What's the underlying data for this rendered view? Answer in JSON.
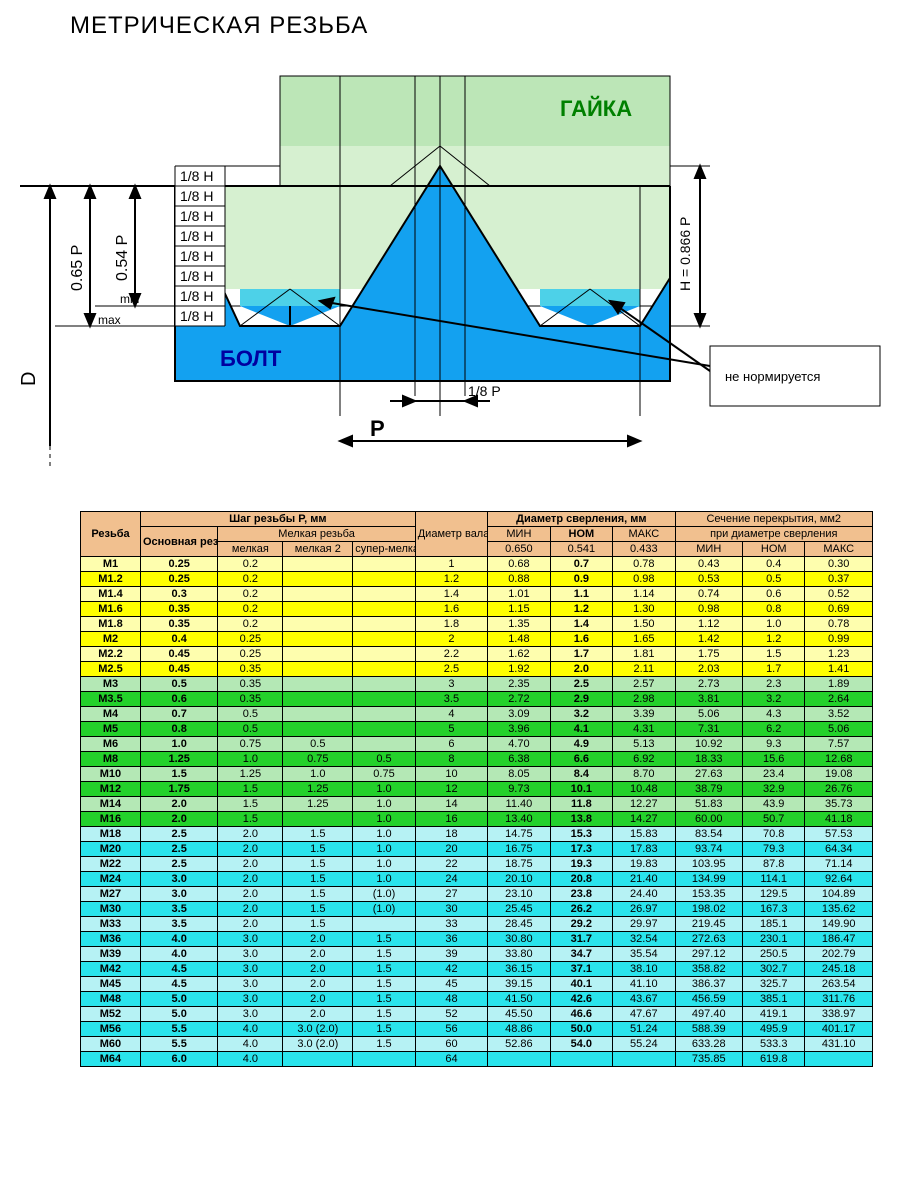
{
  "title": "МЕТРИЧЕСКАЯ РЕЗЬБА",
  "diagram": {
    "nut_label": "ГАЙКА",
    "bolt_label": "БОЛТ",
    "eighth_h": "1/8 H",
    "d_label": "D",
    "p065": "0.65 P",
    "p054": "0.54 P",
    "min": "min",
    "max": "max",
    "h0866": "H = 0.866 P",
    "eighth_p": "1/8 P",
    "p_label": "P",
    "tooltip": "не нормируется",
    "colors": {
      "nut_fill": "#BCE6B7",
      "nut_fill_light": "#D6F0D0",
      "bolt_fill": "#13A1F0",
      "valley_fill": "#4DD1E8",
      "line": "#000000"
    }
  },
  "table": {
    "header_bg": "#F1C08F",
    "colors_hi": {
      "yellow": "#FFFF00",
      "lyellow": "#FEFEAE",
      "green": "#24D12B",
      "lgreen": "#B4E8B5",
      "cyan": "#2AE4EC",
      "lcyan": "#B6F2F4"
    },
    "head": {
      "thread": "Резьба",
      "pitch_group": "Шаг резьбы P, мм",
      "diam": "Диаметр вала, мм",
      "drill_group": "Диаметр сверления, мм",
      "overlap_group": "Сечение перекрытия, мм2",
      "overlap_sub": "при диаметре сверления",
      "main_pitch": "Основная резьба",
      "fine_group": "Мелкая резьба",
      "fine1": "мелкая",
      "fine2": "мелкая 2",
      "fine3": "супер-мелкая",
      "min": "МИН",
      "nom": "НОМ",
      "max": "МАКС",
      "d065": "0.650",
      "d054": "0.541",
      "d043": "0.433"
    },
    "rows": [
      {
        "hi": 1,
        "c": "yellow",
        "n": "M1",
        "p": "0.25",
        "f1": "0.2",
        "f2": "",
        "f3": "",
        "d": "1",
        "dmin": "0.68",
        "dnom": "0.7",
        "dmax": "0.78",
        "smin": "0.43",
        "snom": "0.4",
        "smax": "0.30"
      },
      {
        "hi": 0,
        "c": "yellow",
        "n": "M1.2",
        "p": "0.25",
        "f1": "0.2",
        "f2": "",
        "f3": "",
        "d": "1.2",
        "dmin": "0.88",
        "dnom": "0.9",
        "dmax": "0.98",
        "smin": "0.53",
        "snom": "0.5",
        "smax": "0.37"
      },
      {
        "hi": 1,
        "c": "yellow",
        "n": "M1.4",
        "p": "0.3",
        "f1": "0.2",
        "f2": "",
        "f3": "",
        "d": "1.4",
        "dmin": "1.01",
        "dnom": "1.1",
        "dmax": "1.14",
        "smin": "0.74",
        "snom": "0.6",
        "smax": "0.52"
      },
      {
        "hi": 0,
        "c": "yellow",
        "n": "M1.6",
        "p": "0.35",
        "f1": "0.2",
        "f2": "",
        "f3": "",
        "d": "1.6",
        "dmin": "1.15",
        "dnom": "1.2",
        "dmax": "1.30",
        "smin": "0.98",
        "snom": "0.8",
        "smax": "0.69"
      },
      {
        "hi": 1,
        "c": "yellow",
        "n": "M1.8",
        "p": "0.35",
        "f1": "0.2",
        "f2": "",
        "f3": "",
        "d": "1.8",
        "dmin": "1.35",
        "dnom": "1.4",
        "dmax": "1.50",
        "smin": "1.12",
        "snom": "1.0",
        "smax": "0.78"
      },
      {
        "hi": 0,
        "c": "yellow",
        "n": "M2",
        "p": "0.4",
        "f1": "0.25",
        "f2": "",
        "f3": "",
        "d": "2",
        "dmin": "1.48",
        "dnom": "1.6",
        "dmax": "1.65",
        "smin": "1.42",
        "snom": "1.2",
        "smax": "0.99"
      },
      {
        "hi": 1,
        "c": "yellow",
        "n": "M2.2",
        "p": "0.45",
        "f1": "0.25",
        "f2": "",
        "f3": "",
        "d": "2.2",
        "dmin": "1.62",
        "dnom": "1.7",
        "dmax": "1.81",
        "smin": "1.75",
        "snom": "1.5",
        "smax": "1.23"
      },
      {
        "hi": 0,
        "c": "yellow",
        "n": "M2.5",
        "p": "0.45",
        "f1": "0.35",
        "f2": "",
        "f3": "",
        "d": "2.5",
        "dmin": "1.92",
        "dnom": "2.0",
        "dmax": "2.11",
        "smin": "2.03",
        "snom": "1.7",
        "smax": "1.41"
      },
      {
        "hi": 1,
        "c": "green",
        "n": "M3",
        "p": "0.5",
        "f1": "0.35",
        "f2": "",
        "f3": "",
        "d": "3",
        "dmin": "2.35",
        "dnom": "2.5",
        "dmax": "2.57",
        "smin": "2.73",
        "snom": "2.3",
        "smax": "1.89"
      },
      {
        "hi": 0,
        "c": "green",
        "n": "M3.5",
        "p": "0.6",
        "f1": "0.35",
        "f2": "",
        "f3": "",
        "d": "3.5",
        "dmin": "2.72",
        "dnom": "2.9",
        "dmax": "2.98",
        "smin": "3.81",
        "snom": "3.2",
        "smax": "2.64"
      },
      {
        "hi": 1,
        "c": "green",
        "n": "M4",
        "p": "0.7",
        "f1": "0.5",
        "f2": "",
        "f3": "",
        "d": "4",
        "dmin": "3.09",
        "dnom": "3.2",
        "dmax": "3.39",
        "smin": "5.06",
        "snom": "4.3",
        "smax": "3.52"
      },
      {
        "hi": 0,
        "c": "green",
        "n": "M5",
        "p": "0.8",
        "f1": "0.5",
        "f2": "",
        "f3": "",
        "d": "5",
        "dmin": "3.96",
        "dnom": "4.1",
        "dmax": "4.31",
        "smin": "7.31",
        "snom": "6.2",
        "smax": "5.06"
      },
      {
        "hi": 1,
        "c": "green",
        "n": "M6",
        "p": "1.0",
        "f1": "0.75",
        "f2": "0.5",
        "f3": "",
        "d": "6",
        "dmin": "4.70",
        "dnom": "4.9",
        "dmax": "5.13",
        "smin": "10.92",
        "snom": "9.3",
        "smax": "7.57"
      },
      {
        "hi": 0,
        "c": "green",
        "n": "M8",
        "p": "1.25",
        "f1": "1.0",
        "f2": "0.75",
        "f3": "0.5",
        "d": "8",
        "dmin": "6.38",
        "dnom": "6.6",
        "dmax": "6.92",
        "smin": "18.33",
        "snom": "15.6",
        "smax": "12.68"
      },
      {
        "hi": 1,
        "c": "green",
        "n": "M10",
        "p": "1.5",
        "f1": "1.25",
        "f2": "1.0",
        "f3": "0.75",
        "d": "10",
        "dmin": "8.05",
        "dnom": "8.4",
        "dmax": "8.70",
        "smin": "27.63",
        "snom": "23.4",
        "smax": "19.08"
      },
      {
        "hi": 0,
        "c": "green",
        "n": "M12",
        "p": "1.75",
        "f1": "1.5",
        "f2": "1.25",
        "f3": "1.0",
        "d": "12",
        "dmin": "9.73",
        "dnom": "10.1",
        "dmax": "10.48",
        "smin": "38.79",
        "snom": "32.9",
        "smax": "26.76"
      },
      {
        "hi": 1,
        "c": "green",
        "n": "M14",
        "p": "2.0",
        "f1": "1.5",
        "f2": "1.25",
        "f3": "1.0",
        "d": "14",
        "dmin": "11.40",
        "dnom": "11.8",
        "dmax": "12.27",
        "smin": "51.83",
        "snom": "43.9",
        "smax": "35.73"
      },
      {
        "hi": 0,
        "c": "green",
        "n": "M16",
        "p": "2.0",
        "f1": "1.5",
        "f2": "",
        "f3": "1.0",
        "d": "16",
        "dmin": "13.40",
        "dnom": "13.8",
        "dmax": "14.27",
        "smin": "60.00",
        "snom": "50.7",
        "smax": "41.18"
      },
      {
        "hi": 1,
        "c": "cyan",
        "n": "M18",
        "p": "2.5",
        "f1": "2.0",
        "f2": "1.5",
        "f3": "1.0",
        "d": "18",
        "dmin": "14.75",
        "dnom": "15.3",
        "dmax": "15.83",
        "smin": "83.54",
        "snom": "70.8",
        "smax": "57.53"
      },
      {
        "hi": 0,
        "c": "cyan",
        "n": "M20",
        "p": "2.5",
        "f1": "2.0",
        "f2": "1.5",
        "f3": "1.0",
        "d": "20",
        "dmin": "16.75",
        "dnom": "17.3",
        "dmax": "17.83",
        "smin": "93.74",
        "snom": "79.3",
        "smax": "64.34"
      },
      {
        "hi": 1,
        "c": "cyan",
        "n": "M22",
        "p": "2.5",
        "f1": "2.0",
        "f2": "1.5",
        "f3": "1.0",
        "d": "22",
        "dmin": "18.75",
        "dnom": "19.3",
        "dmax": "19.83",
        "smin": "103.95",
        "snom": "87.8",
        "smax": "71.14"
      },
      {
        "hi": 0,
        "c": "cyan",
        "n": "M24",
        "p": "3.0",
        "f1": "2.0",
        "f2": "1.5",
        "f3": "1.0",
        "d": "24",
        "dmin": "20.10",
        "dnom": "20.8",
        "dmax": "21.40",
        "smin": "134.99",
        "snom": "114.1",
        "smax": "92.64"
      },
      {
        "hi": 1,
        "c": "cyan",
        "n": "M27",
        "p": "3.0",
        "f1": "2.0",
        "f2": "1.5",
        "f3": "(1.0)",
        "d": "27",
        "dmin": "23.10",
        "dnom": "23.8",
        "dmax": "24.40",
        "smin": "153.35",
        "snom": "129.5",
        "smax": "104.89"
      },
      {
        "hi": 0,
        "c": "cyan",
        "n": "M30",
        "p": "3.5",
        "f1": "2.0",
        "f2": "1.5",
        "f3": "(1.0)",
        "d": "30",
        "dmin": "25.45",
        "dnom": "26.2",
        "dmax": "26.97",
        "smin": "198.02",
        "snom": "167.3",
        "smax": "135.62"
      },
      {
        "hi": 1,
        "c": "cyan",
        "n": "M33",
        "p": "3.5",
        "f1": "2.0",
        "f2": "1.5",
        "f3": "",
        "d": "33",
        "dmin": "28.45",
        "dnom": "29.2",
        "dmax": "29.97",
        "smin": "219.45",
        "snom": "185.1",
        "smax": "149.90"
      },
      {
        "hi": 0,
        "c": "cyan",
        "n": "M36",
        "p": "4.0",
        "f1": "3.0",
        "f2": "2.0",
        "f3": "1.5",
        "d": "36",
        "dmin": "30.80",
        "dnom": "31.7",
        "dmax": "32.54",
        "smin": "272.63",
        "snom": "230.1",
        "smax": "186.47"
      },
      {
        "hi": 1,
        "c": "cyan",
        "n": "M39",
        "p": "4.0",
        "f1": "3.0",
        "f2": "2.0",
        "f3": "1.5",
        "d": "39",
        "dmin": "33.80",
        "dnom": "34.7",
        "dmax": "35.54",
        "smin": "297.12",
        "snom": "250.5",
        "smax": "202.79"
      },
      {
        "hi": 0,
        "c": "cyan",
        "n": "M42",
        "p": "4.5",
        "f1": "3.0",
        "f2": "2.0",
        "f3": "1.5",
        "d": "42",
        "dmin": "36.15",
        "dnom": "37.1",
        "dmax": "38.10",
        "smin": "358.82",
        "snom": "302.7",
        "smax": "245.18"
      },
      {
        "hi": 1,
        "c": "cyan",
        "n": "M45",
        "p": "4.5",
        "f1": "3.0",
        "f2": "2.0",
        "f3": "1.5",
        "d": "45",
        "dmin": "39.15",
        "dnom": "40.1",
        "dmax": "41.10",
        "smin": "386.37",
        "snom": "325.7",
        "smax": "263.54"
      },
      {
        "hi": 0,
        "c": "cyan",
        "n": "M48",
        "p": "5.0",
        "f1": "3.0",
        "f2": "2.0",
        "f3": "1.5",
        "d": "48",
        "dmin": "41.50",
        "dnom": "42.6",
        "dmax": "43.67",
        "smin": "456.59",
        "snom": "385.1",
        "smax": "311.76"
      },
      {
        "hi": 1,
        "c": "cyan",
        "n": "M52",
        "p": "5.0",
        "f1": "3.0",
        "f2": "2.0",
        "f3": "1.5",
        "d": "52",
        "dmin": "45.50",
        "dnom": "46.6",
        "dmax": "47.67",
        "smin": "497.40",
        "snom": "419.1",
        "smax": "338.97"
      },
      {
        "hi": 0,
        "c": "cyan",
        "n": "M56",
        "p": "5.5",
        "f1": "4.0",
        "f2": "3.0 (2.0)",
        "f3": "1.5",
        "d": "56",
        "dmin": "48.86",
        "dnom": "50.0",
        "dmax": "51.24",
        "smin": "588.39",
        "snom": "495.9",
        "smax": "401.17"
      },
      {
        "hi": 1,
        "c": "cyan",
        "n": "M60",
        "p": "5.5",
        "f1": "4.0",
        "f2": "3.0 (2.0)",
        "f3": "1.5",
        "d": "60",
        "dmin": "52.86",
        "dnom": "54.0",
        "dmax": "55.24",
        "smin": "633.28",
        "snom": "533.3",
        "smax": "431.10"
      },
      {
        "hi": 0,
        "c": "cyan",
        "n": "M64",
        "p": "6.0",
        "f1": "4.0",
        "f2": "",
        "f3": "",
        "d": "64",
        "dmin": "",
        "dnom": "",
        "dmax": "",
        "smin": "735.85",
        "snom": "619.8",
        "smax": ""
      }
    ]
  }
}
